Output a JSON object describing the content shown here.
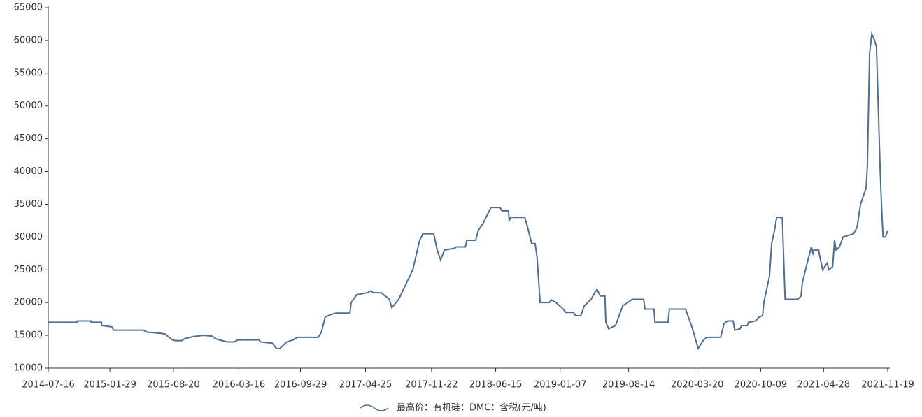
{
  "chart_data": {
    "type": "line",
    "x": [
      "2014-07-16",
      "2014-10-16",
      "2014-10-17",
      "2014-11-29",
      "2014-11-30",
      "2015-01-02",
      "2015-01-03",
      "2015-02-04",
      "2015-02-10",
      "2015-05-16",
      "2015-05-27",
      "2015-07-11",
      "2015-07-25",
      "2015-08-13",
      "2015-08-25",
      "2015-09-16",
      "2015-09-25",
      "2015-10-20",
      "2015-11-22",
      "2015-12-20",
      "2016-01-06",
      "2016-02-08",
      "2016-03-01",
      "2016-03-13",
      "2016-05-19",
      "2016-05-25",
      "2016-07-01",
      "2016-07-14",
      "2016-07-25",
      "2016-08-16",
      "2016-09-05",
      "2016-09-19",
      "2016-11-25",
      "2016-12-05",
      "2016-12-17",
      "2017-01-05",
      "2017-01-20",
      "2017-03-06",
      "2017-03-10",
      "2017-03-28",
      "2017-05-01",
      "2017-05-12",
      "2017-05-20",
      "2017-06-14",
      "2017-07-10",
      "2017-07-18",
      "2017-08-09",
      "2017-09-23",
      "2017-10-15",
      "2017-10-25",
      "2017-11-29",
      "2017-12-10",
      "2017-12-21",
      "2018-01-02",
      "2018-02-04",
      "2018-02-10",
      "2018-03-10",
      "2018-03-15",
      "2018-04-12",
      "2018-04-20",
      "2018-05-05",
      "2018-05-20",
      "2018-05-31",
      "2018-06-29",
      "2018-07-05",
      "2018-07-26",
      "2018-07-28",
      "2018-08-02",
      "2018-09-16",
      "2018-09-25",
      "2018-10-08",
      "2018-10-19",
      "2018-10-25",
      "2018-11-04",
      "2018-12-03",
      "2018-12-10",
      "2018-12-25",
      "2019-01-17",
      "2019-01-25",
      "2019-02-19",
      "2019-02-25",
      "2019-03-14",
      "2019-03-25",
      "2019-04-16",
      "2019-04-27",
      "2019-05-05",
      "2019-05-15",
      "2019-05-30",
      "2019-06-02",
      "2019-06-11",
      "2019-07-03",
      "2019-07-26",
      "2019-08-17",
      "2019-08-25",
      "2019-10-01",
      "2019-10-05",
      "2019-11-03",
      "2019-11-06",
      "2019-12-18",
      "2019-12-22",
      "2020-02-12",
      "2020-03-05",
      "2020-03-23",
      "2020-04-08",
      "2020-04-19",
      "2020-06-03",
      "2020-06-14",
      "2020-06-25",
      "2020-07-13",
      "2020-07-18",
      "2020-08-04",
      "2020-08-09",
      "2020-08-27",
      "2020-08-31",
      "2020-09-23",
      "2020-10-04",
      "2020-10-15",
      "2020-10-19",
      "2020-11-06",
      "2020-11-13",
      "2020-11-22",
      "2020-11-29",
      "2020-12-17",
      "2020-12-26",
      "2021-02-04",
      "2021-02-15",
      "2021-02-19",
      "2021-03-09",
      "2021-03-20",
      "2021-03-25",
      "2021-03-28",
      "2021-04-12",
      "2021-04-16",
      "2021-04-25",
      "2021-05-09",
      "2021-05-15",
      "2021-05-27",
      "2021-06-02",
      "2021-06-07",
      "2021-06-18",
      "2021-06-29",
      "2021-08-02",
      "2021-08-13",
      "2021-08-24",
      "2021-09-11",
      "2021-09-15",
      "2021-09-22",
      "2021-09-29",
      "2021-10-08",
      "2021-10-14",
      "2021-10-19",
      "2021-10-26",
      "2021-10-30",
      "2021-11-04",
      "2021-11-12",
      "2021-11-19"
    ],
    "series": [
      {
        "name": "最高价：有机硅：DMC：含税(元/吨)",
        "color": "#4e6e96",
        "values": [
          17000,
          17000,
          17200,
          17200,
          17000,
          17000,
          16500,
          16300,
          15800,
          15800,
          15500,
          15300,
          15200,
          14400,
          14200,
          14200,
          14500,
          14800,
          15000,
          14900,
          14400,
          14000,
          14000,
          14300,
          14300,
          14000,
          13800,
          13000,
          13000,
          14000,
          14300,
          14700,
          14700,
          15500,
          17800,
          18200,
          18400,
          18400,
          20000,
          21200,
          21500,
          21800,
          21500,
          21500,
          20500,
          19200,
          20500,
          25000,
          29500,
          30500,
          30500,
          28000,
          26500,
          28000,
          28300,
          28500,
          28500,
          29500,
          29500,
          31000,
          32000,
          33500,
          34500,
          34500,
          34000,
          34000,
          32500,
          33000,
          33000,
          31500,
          29000,
          29000,
          27000,
          20000,
          20000,
          20400,
          20000,
          19000,
          18500,
          18500,
          18000,
          18000,
          19500,
          20500,
          21500,
          22000,
          21000,
          21000,
          17000,
          16000,
          16500,
          19500,
          20200,
          20500,
          20500,
          19000,
          19000,
          17000,
          17000,
          19000,
          19000,
          16000,
          13000,
          14200,
          14700,
          14700,
          16800,
          17200,
          17200,
          15800,
          16000,
          16500,
          16500,
          17000,
          17200,
          17800,
          18000,
          20000,
          24000,
          29000,
          31000,
          33000,
          33000,
          20500,
          20500,
          21000,
          23000,
          26500,
          28500,
          27500,
          28000,
          28000,
          27000,
          25000,
          26000,
          25000,
          25500,
          29500,
          28000,
          28500,
          30000,
          30500,
          31500,
          35000,
          37500,
          41000,
          58000,
          61000,
          60000,
          59000,
          51000,
          40000,
          35000,
          30000,
          30000,
          31000
        ]
      }
    ],
    "xlim": [
      "2014-07-16",
      "2021-11-19"
    ],
    "xticks": [
      "2014-07-16",
      "2015-01-29",
      "2015-08-20",
      "2016-03-16",
      "2016-09-29",
      "2017-04-25",
      "2017-11-22",
      "2018-06-15",
      "2019-01-07",
      "2019-08-14",
      "2020-03-20",
      "2020-10-09",
      "2021-04-28",
      "2021-11-19"
    ],
    "ylim": [
      10000,
      65000
    ],
    "yticks": [
      10000,
      15000,
      20000,
      25000,
      30000,
      35000,
      40000,
      45000,
      50000,
      55000,
      60000,
      65000
    ],
    "legend": "bottom"
  }
}
